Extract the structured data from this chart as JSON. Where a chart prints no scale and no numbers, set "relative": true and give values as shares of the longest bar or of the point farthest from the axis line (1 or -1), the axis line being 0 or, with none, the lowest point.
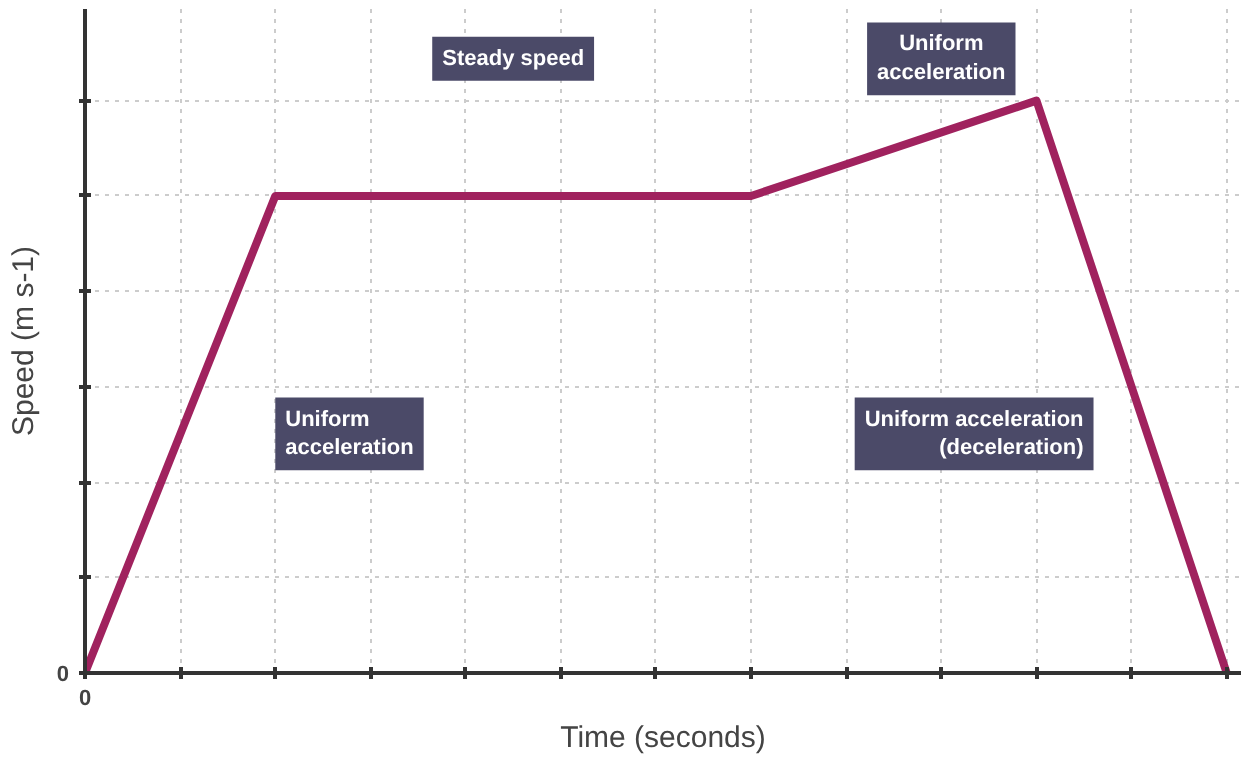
{
  "chart_data": {
    "type": "line",
    "relative": true,
    "xlabel": "Time (seconds)",
    "ylabel": "Speed (m s-1)",
    "categories": [
      null,
      null,
      null,
      null,
      null,
      null,
      null,
      null,
      null,
      null,
      null,
      null,
      null
    ],
    "series": [
      {
        "color": "#a0225e",
        "values": [
          0,
          0.4167,
          0.8333,
          0.8333,
          0.8333,
          0.8333,
          0.8333,
          0.8333,
          0.8889,
          0.9444,
          1,
          0.5,
          0
        ]
      }
    ],
    "grid": true,
    "annotations": [
      "0",
      "0",
      "Uniform\nacceleration",
      "Steady speed",
      "Uniform\nacceleration",
      "Uniform acceleration\n(deceleration)"
    ]
  }
}
